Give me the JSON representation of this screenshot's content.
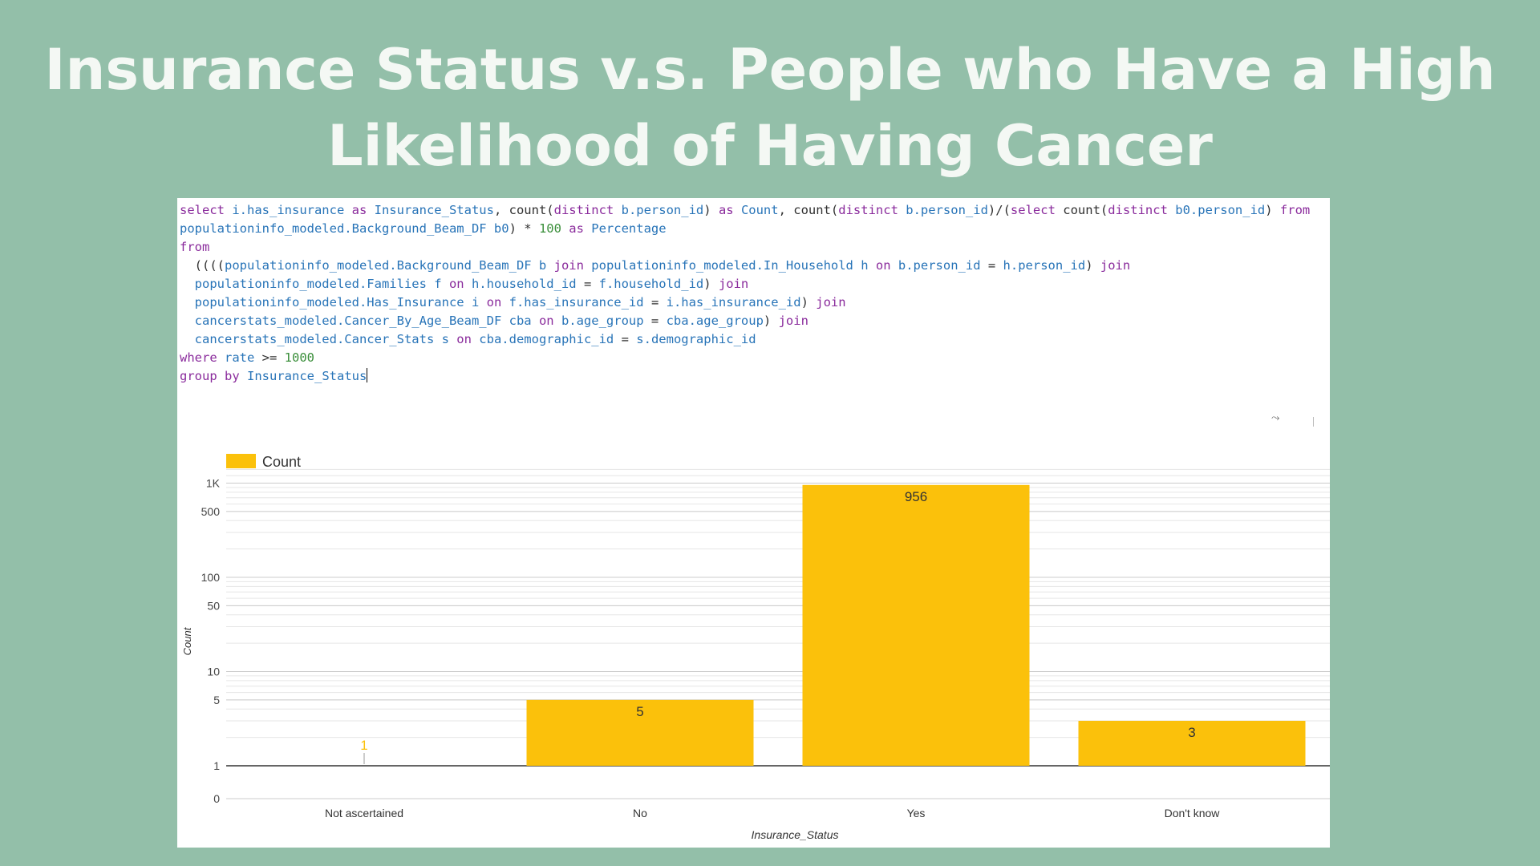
{
  "slide": {
    "title": "Insurance Status v.s. People who Have a High Likelihood of Having Cancer",
    "title_color": "#f4f8f4",
    "background_color": "#93bfa9"
  },
  "sql": {
    "lines": [
      [
        {
          "t": "kw",
          "s": "select "
        },
        {
          "t": "id",
          "s": "i.has_insurance "
        },
        {
          "t": "kw",
          "s": "as "
        },
        {
          "t": "id",
          "s": "Insurance_Status"
        },
        {
          "t": "plain",
          "s": ", count("
        },
        {
          "t": "kw",
          "s": "distinct "
        },
        {
          "t": "id",
          "s": "b.person_id"
        },
        {
          "t": "plain",
          "s": ") "
        },
        {
          "t": "kw",
          "s": "as "
        },
        {
          "t": "id",
          "s": "Count"
        },
        {
          "t": "plain",
          "s": ", count("
        },
        {
          "t": "kw",
          "s": "distinct "
        },
        {
          "t": "id",
          "s": "b.person_id"
        },
        {
          "t": "plain",
          "s": ")/("
        },
        {
          "t": "kw",
          "s": "select "
        },
        {
          "t": "plain",
          "s": "count("
        },
        {
          "t": "kw",
          "s": "distinct "
        },
        {
          "t": "id",
          "s": "b0.person_id"
        },
        {
          "t": "plain",
          "s": ") "
        },
        {
          "t": "kw",
          "s": "from"
        }
      ],
      [
        {
          "t": "id",
          "s": "populationinfo_modeled.Background_Beam_DF b0"
        },
        {
          "t": "plain",
          "s": ") * "
        },
        {
          "t": "num",
          "s": "100 "
        },
        {
          "t": "kw",
          "s": "as "
        },
        {
          "t": "id",
          "s": "Percentage"
        }
      ],
      [
        {
          "t": "kw",
          "s": "from"
        }
      ],
      [
        {
          "t": "plain",
          "s": "  (((("
        },
        {
          "t": "id",
          "s": "populationinfo_modeled.Background_Beam_DF b "
        },
        {
          "t": "kw",
          "s": "join "
        },
        {
          "t": "id",
          "s": "populationinfo_modeled.In_Household h "
        },
        {
          "t": "kw",
          "s": "on "
        },
        {
          "t": "id",
          "s": "b.person_id"
        },
        {
          "t": "plain",
          "s": " = "
        },
        {
          "t": "id",
          "s": "h.person_id"
        },
        {
          "t": "plain",
          "s": ") "
        },
        {
          "t": "kw",
          "s": "join"
        }
      ],
      [
        {
          "t": "plain",
          "s": "  "
        },
        {
          "t": "id",
          "s": "populationinfo_modeled.Families f "
        },
        {
          "t": "kw",
          "s": "on "
        },
        {
          "t": "id",
          "s": "h.household_id"
        },
        {
          "t": "plain",
          "s": " = "
        },
        {
          "t": "id",
          "s": "f.household_id"
        },
        {
          "t": "plain",
          "s": ") "
        },
        {
          "t": "kw",
          "s": "join"
        }
      ],
      [
        {
          "t": "plain",
          "s": "  "
        },
        {
          "t": "id",
          "s": "populationinfo_modeled.Has_Insurance i "
        },
        {
          "t": "kw",
          "s": "on "
        },
        {
          "t": "id",
          "s": "f.has_insurance_id"
        },
        {
          "t": "plain",
          "s": " = "
        },
        {
          "t": "id",
          "s": "i.has_insurance_id"
        },
        {
          "t": "plain",
          "s": ") "
        },
        {
          "t": "kw",
          "s": "join"
        }
      ],
      [
        {
          "t": "plain",
          "s": "  "
        },
        {
          "t": "id",
          "s": "cancerstats_modeled.Cancer_By_Age_Beam_DF cba "
        },
        {
          "t": "kw",
          "s": "on "
        },
        {
          "t": "id",
          "s": "b.age_group"
        },
        {
          "t": "plain",
          "s": " = "
        },
        {
          "t": "id",
          "s": "cba.age_group"
        },
        {
          "t": "plain",
          "s": ") "
        },
        {
          "t": "kw",
          "s": "join"
        }
      ],
      [
        {
          "t": "plain",
          "s": "  "
        },
        {
          "t": "id",
          "s": "cancerstats_modeled.Cancer_Stats s "
        },
        {
          "t": "kw",
          "s": "on "
        },
        {
          "t": "id",
          "s": "cba.demographic_id"
        },
        {
          "t": "plain",
          "s": " = "
        },
        {
          "t": "id",
          "s": "s.demographic_id"
        }
      ],
      [
        {
          "t": "kw",
          "s": "where "
        },
        {
          "t": "id",
          "s": "rate "
        },
        {
          "t": "plain",
          "s": ">= "
        },
        {
          "t": "num",
          "s": "1000"
        }
      ],
      [
        {
          "t": "kw",
          "s": "group by "
        },
        {
          "t": "id",
          "s": "Insurance_Status"
        }
      ]
    ],
    "colors": {
      "keyword": "#8a2b9c",
      "identifier": "#2874b8",
      "number": "#3b8f3b",
      "plain": "#303030"
    }
  },
  "toolbar": {
    "icon": "chart-options-icon"
  },
  "chart_data": {
    "type": "bar",
    "categories": [
      "Not ascertained",
      "No",
      "Yes",
      "Don't know"
    ],
    "series": [
      {
        "name": "Count",
        "values": [
          1,
          5,
          956,
          3
        ],
        "color": "#fbc10b"
      }
    ],
    "data_labels": [
      "1",
      "5",
      "956",
      "3"
    ],
    "xlabel": "Insurance_Status",
    "ylabel": "Count",
    "yscale": "log",
    "ytick_values": [
      0,
      1,
      5,
      10,
      50,
      100,
      500,
      1000
    ],
    "ytick_labels": [
      "0",
      "1",
      "5",
      "10",
      "50",
      "100",
      "500",
      "1K"
    ],
    "ylim": [
      0,
      1000
    ],
    "legend": {
      "position": "top-left",
      "entries": [
        "Count"
      ]
    },
    "grid": true
  }
}
